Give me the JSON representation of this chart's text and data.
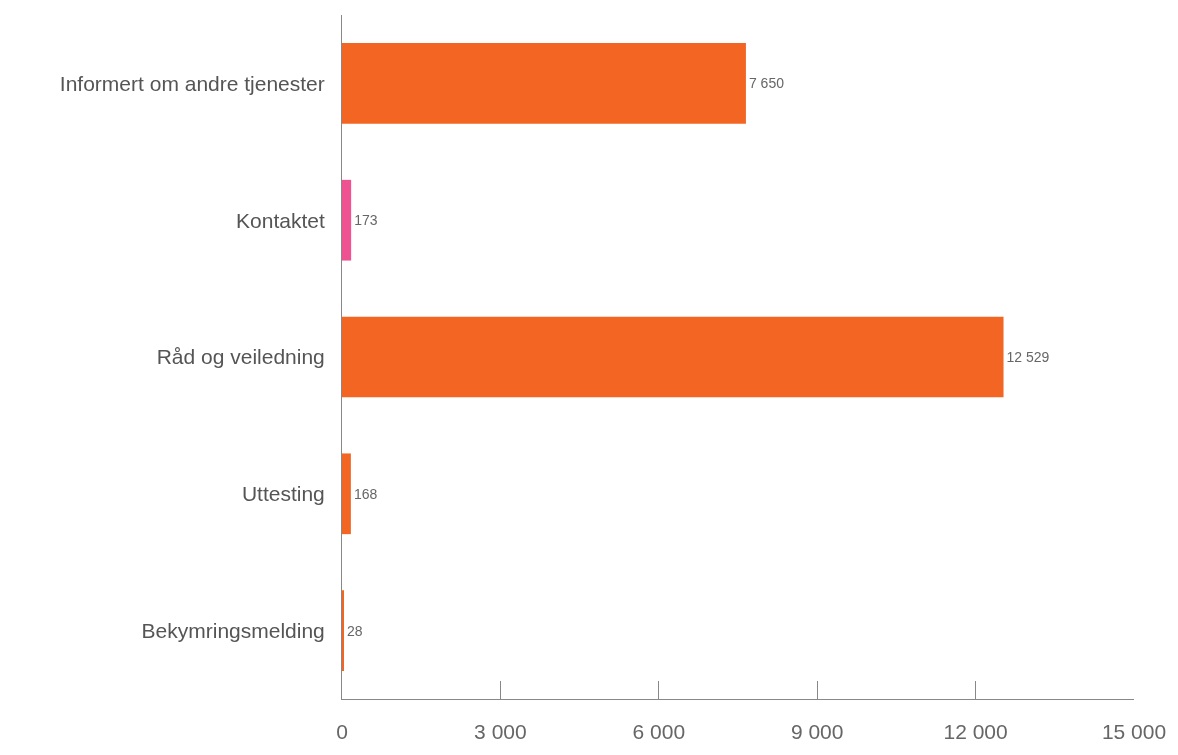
{
  "chart_data": {
    "type": "bar",
    "orientation": "horizontal",
    "categories": [
      "Informert om andre tjenester",
      "Kontaktet",
      "Råd og veiledning",
      "Uttesting",
      "Bekymringsmelding"
    ],
    "values": [
      7650,
      173,
      12529,
      168,
      28
    ],
    "colors": [
      "#f26522",
      "#ef5290",
      "#f26522",
      "#f26522",
      "#f26522"
    ],
    "value_labels": [
      "7 650",
      "173",
      "12 529",
      "168",
      "28"
    ],
    "xlim": [
      0,
      15000
    ],
    "xticks": [
      0,
      {
        "value": 3000,
        "label": "3 000"
      },
      {
        "value": 6000,
        "label": "6 000"
      },
      {
        "value": 9000,
        "label": "9 000"
      },
      {
        "value": 12000,
        "label": "12 000"
      },
      {
        "value": 15000,
        "label": "15 000"
      }
    ]
  }
}
